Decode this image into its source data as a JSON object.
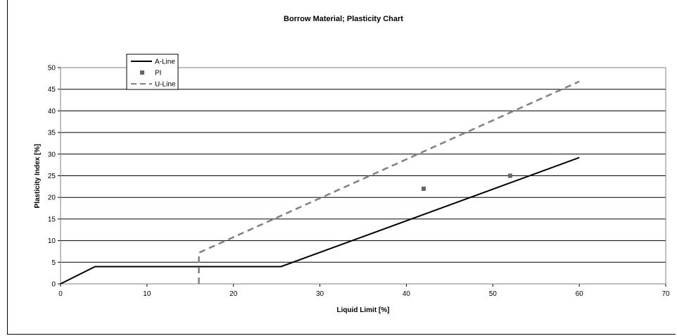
{
  "chart_data": {
    "type": "line",
    "title": "Borrow Material; Plasticity Chart",
    "xlabel": "Liquid Limit [%]",
    "ylabel": "Plasticity Index [%]",
    "xlim": [
      0,
      70
    ],
    "ylim": [
      0,
      50
    ],
    "xticks": [
      0,
      10,
      20,
      30,
      40,
      50,
      60,
      70
    ],
    "yticks": [
      0,
      5,
      10,
      15,
      20,
      25,
      30,
      35,
      40,
      45,
      50
    ],
    "grid": "horizontal",
    "legend_position": "top-left",
    "series": [
      {
        "name": "A-Line",
        "style": "solid",
        "color": "#000000",
        "points": [
          [
            0,
            0
          ],
          [
            4,
            4
          ],
          [
            25.5,
            4
          ],
          [
            60,
            29.2
          ]
        ]
      },
      {
        "name": "PI",
        "style": "marker",
        "color": "#666666",
        "points": [
          [
            42,
            22
          ],
          [
            52,
            25
          ]
        ]
      },
      {
        "name": "U-Line",
        "style": "dashed",
        "color": "#808080",
        "points": [
          [
            16,
            0
          ],
          [
            16,
            7.2
          ],
          [
            60,
            46.8
          ]
        ]
      }
    ]
  }
}
